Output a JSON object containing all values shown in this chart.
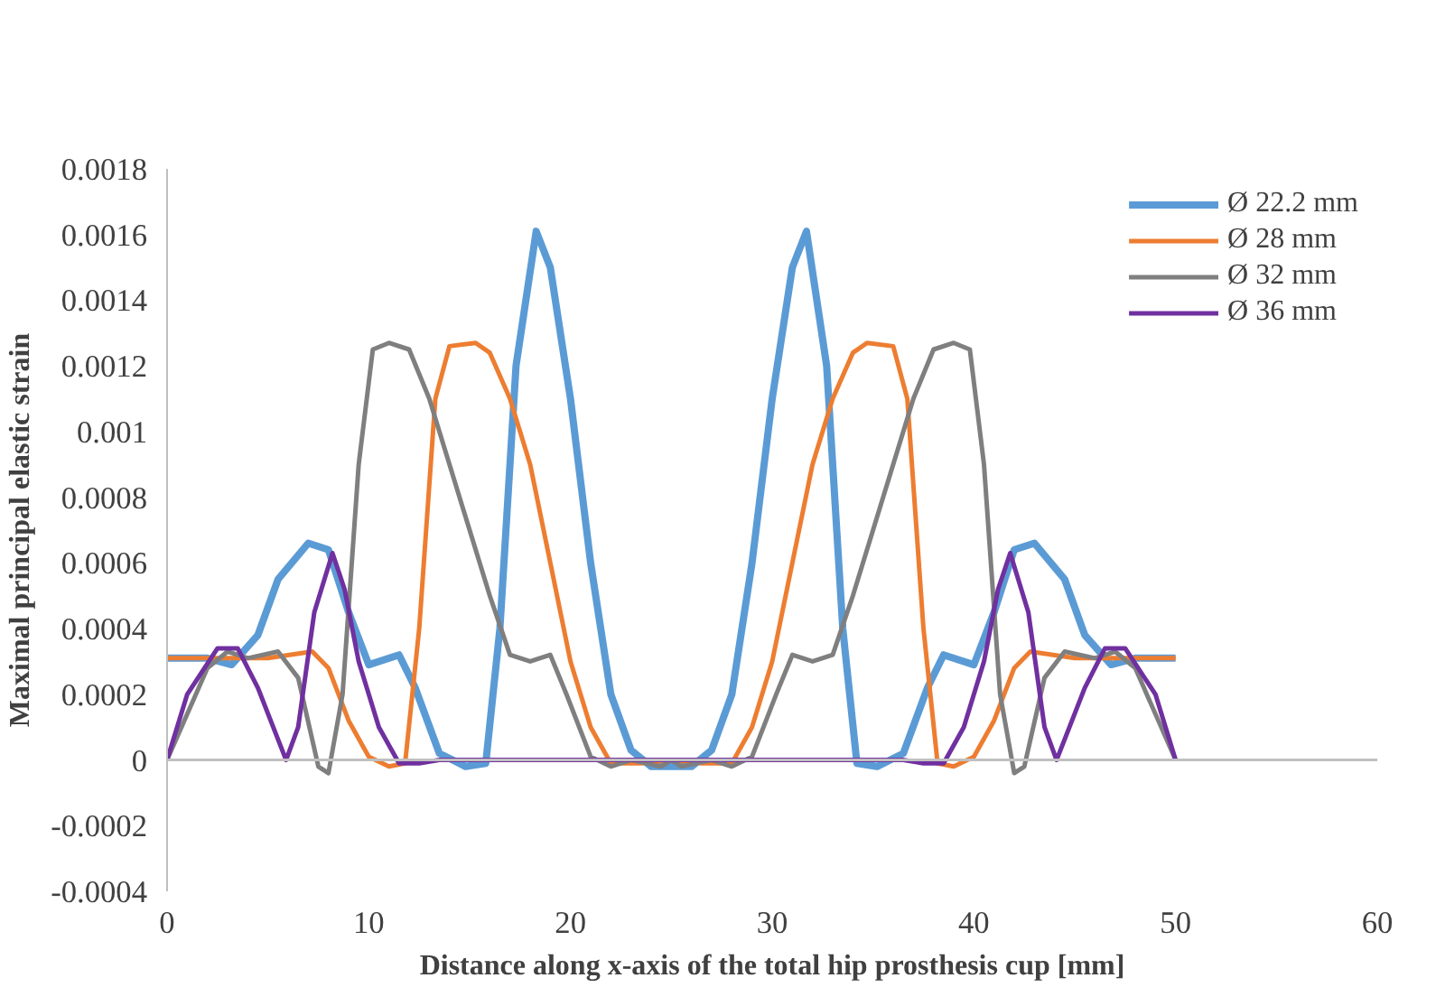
{
  "chart_data": {
    "type": "line",
    "xlabel": "Distance along x-axis of the total hip prosthesis cup [mm]",
    "ylabel": "Maximal principal elastic strain",
    "xlim": [
      0,
      60
    ],
    "xticks": [
      0,
      10,
      20,
      30,
      40,
      50,
      60
    ],
    "ylim": [
      -0.0004,
      0.0018
    ],
    "yticks": [
      {
        "value": -0.0004,
        "label": "-0.0004"
      },
      {
        "value": -0.0002,
        "label": "-0.0002"
      },
      0,
      {
        "value": 0.0002,
        "label": "0.0002"
      },
      {
        "value": 0.0004,
        "label": "0.0004"
      },
      {
        "value": 0.0006,
        "label": "0.0006"
      },
      {
        "value": 0.0008,
        "label": "0.0008"
      },
      {
        "value": 0.001,
        "label": "0.001"
      },
      {
        "value": 0.0012,
        "label": "0.0012"
      },
      {
        "value": 0.0014,
        "label": "0.0014"
      },
      {
        "value": 0.0016,
        "label": "0.0016"
      },
      {
        "value": 0.0018,
        "label": "0.0018"
      }
    ],
    "grid": false,
    "ref_lines": [
      {
        "axis": "y",
        "value": 0,
        "color": "#c0c0c0",
        "line_style": "solid"
      }
    ],
    "legend": "top right",
    "marker": "none",
    "line_style": "solid",
    "series": [
      {
        "name": "Ø 22.2 mm",
        "color": "#5b9bd5",
        "x": [
          0,
          2,
          3.2,
          4.5,
          5.5,
          7,
          8,
          9,
          10,
          11.5,
          12.3,
          13.5,
          14.8,
          15.8,
          16.5,
          17.3,
          18.3,
          19,
          20,
          21,
          22,
          23,
          24,
          25,
          26,
          27,
          28,
          29,
          30,
          31,
          31.7,
          32.7,
          33.5,
          34.2,
          35.2,
          36.5,
          37.7,
          38.5,
          40,
          41,
          42,
          43,
          44.5,
          45.5,
          46.8,
          48,
          50
        ],
        "values": [
          0.00031,
          0.00031,
          0.00029,
          0.00038,
          0.00055,
          0.00066,
          0.00064,
          0.00045,
          0.00029,
          0.00032,
          0.00022,
          2e-05,
          -2e-05,
          -1e-05,
          0.0004,
          0.0012,
          0.00161,
          0.0015,
          0.0011,
          0.0006,
          0.0002,
          3e-05,
          -2e-05,
          -2e-05,
          -2e-05,
          3e-05,
          0.0002,
          0.0006,
          0.0011,
          0.0015,
          0.00161,
          0.0012,
          0.0004,
          -1e-05,
          -2e-05,
          2e-05,
          0.00022,
          0.00032,
          0.00029,
          0.00045,
          0.00064,
          0.00066,
          0.00055,
          0.00038,
          0.00029,
          0.00031,
          0.00031
        ]
      },
      {
        "name": "Ø 28 mm",
        "color": "#ed7d31",
        "x": [
          0,
          3,
          5,
          7.2,
          8,
          9,
          10,
          11,
          11.8,
          12.5,
          13.3,
          14,
          15.3,
          16,
          17,
          18,
          19,
          20,
          21,
          22,
          23.5,
          25,
          26.5,
          28,
          29,
          30,
          31,
          32,
          33,
          34,
          34.7,
          36,
          36.7,
          37.5,
          38.2,
          39,
          40,
          41,
          42,
          42.8,
          45,
          47,
          50
        ],
        "values": [
          0.00031,
          0.00031,
          0.00031,
          0.00033,
          0.00028,
          0.00012,
          1e-05,
          -2e-05,
          -1e-05,
          0.0004,
          0.0011,
          0.00126,
          0.00127,
          0.00124,
          0.0011,
          0.0009,
          0.0006,
          0.0003,
          0.0001,
          -1e-05,
          -1e-05,
          0,
          -1e-05,
          -1e-05,
          0.0001,
          0.0003,
          0.0006,
          0.0009,
          0.0011,
          0.00124,
          0.00127,
          0.00126,
          0.0011,
          0.0004,
          -1e-05,
          -2e-05,
          1e-05,
          0.00012,
          0.00028,
          0.00033,
          0.00031,
          0.00031,
          0.00031
        ]
      },
      {
        "name": "Ø 32 mm",
        "color": "#7f7f7f",
        "x": [
          0,
          2,
          3,
          4,
          5.5,
          6.5,
          7.5,
          8,
          8.7,
          9.5,
          10.2,
          11,
          12,
          13,
          14,
          15,
          16,
          17,
          18,
          19,
          19.8,
          21,
          22,
          23,
          24.5,
          25,
          25.5,
          27,
          28,
          29,
          30.2,
          31,
          32,
          33,
          34,
          35,
          36,
          37,
          38,
          39,
          39.8,
          40.5,
          41.3,
          42,
          42.5,
          43.5,
          44.5,
          46,
          47,
          48,
          50
        ],
        "values": [
          0,
          0.00028,
          0.00033,
          0.00031,
          0.00033,
          0.00025,
          -2e-05,
          -4e-05,
          0.0002,
          0.0009,
          0.00125,
          0.00127,
          0.00125,
          0.0011,
          0.0009,
          0.0007,
          0.0005,
          0.00032,
          0.0003,
          0.00032,
          0.0002,
          1e-05,
          -2e-05,
          0,
          -2e-05,
          0,
          -2e-05,
          0,
          -2e-05,
          1e-05,
          0.0002,
          0.00032,
          0.0003,
          0.00032,
          0.0005,
          0.0007,
          0.0009,
          0.0011,
          0.00125,
          0.00127,
          0.00125,
          0.0009,
          0.0002,
          -4e-05,
          -2e-05,
          0.00025,
          0.00033,
          0.00031,
          0.00033,
          0.00028,
          0
        ]
      },
      {
        "name": "Ø 36 mm",
        "color": "#7030a0",
        "x": [
          0,
          1,
          2.5,
          3.5,
          4.5,
          5.9,
          6.5,
          7.3,
          8.2,
          8.8,
          9.5,
          10.5,
          11.5,
          12.5,
          13.5,
          25,
          36.5,
          37.5,
          38.5,
          39.5,
          40.5,
          41.2,
          41.8,
          42.7,
          43.5,
          44.1,
          45.5,
          46.5,
          47.5,
          49,
          50
        ],
        "values": [
          0,
          0.0002,
          0.00034,
          0.00034,
          0.00022,
          0,
          0.0001,
          0.00045,
          0.00063,
          0.00052,
          0.0003,
          0.0001,
          -1e-05,
          -1e-05,
          0,
          0,
          0,
          -1e-05,
          -1e-05,
          0.0001,
          0.0003,
          0.00052,
          0.00063,
          0.00045,
          0.0001,
          0,
          0.00022,
          0.00034,
          0.00034,
          0.0002,
          0
        ]
      }
    ]
  }
}
